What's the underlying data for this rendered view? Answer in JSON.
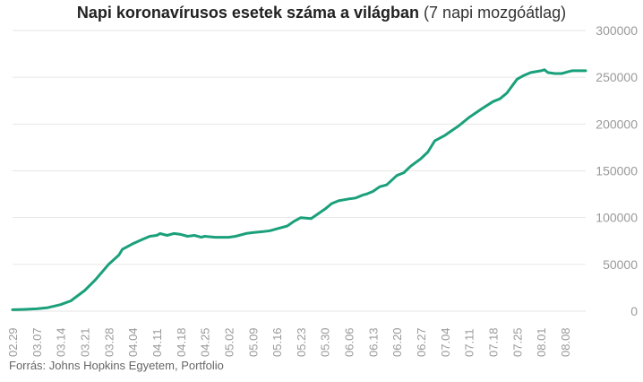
{
  "title_bold": "Napi koronavírusos esetek száma a világban",
  "title_normal": "(7 napi mozgóátlag)",
  "source": "Forrás: Johns Hopkins Egyetem, Portfolio",
  "colors": {
    "line": "#1aa07a",
    "grid": "#e6e6e6",
    "axis_text": "#9a9a9a"
  },
  "chart_data": {
    "type": "line",
    "title": "Napi koronavírusos esetek száma a világban (7 napi mozgóátlag)",
    "xlabel": "",
    "ylabel": "",
    "ylim": [
      0,
      300000
    ],
    "yticks": [
      0,
      50000,
      100000,
      150000,
      200000,
      250000,
      300000
    ],
    "ytick_labels": [
      "0",
      "50000",
      "100000",
      "150000",
      "200000",
      "250000",
      "300000"
    ],
    "x_start": "02.29",
    "x_ticks": [
      "02.29",
      "03.07",
      "03.14",
      "03.21",
      "03.28",
      "04.04",
      "04.11",
      "04.18",
      "04.25",
      "05.02",
      "05.09",
      "05.16",
      "05.23",
      "05.30",
      "06.06",
      "06.13",
      "06.20",
      "06.27",
      "07.04",
      "07.11",
      "07.18",
      "07.25",
      "08.01",
      "08.08"
    ],
    "x_end": "08.14",
    "grid": true,
    "series": [
      {
        "name": "",
        "points": [
          [
            "02.29",
            1500
          ],
          [
            "03.03",
            1800
          ],
          [
            "03.07",
            2500
          ],
          [
            "03.10",
            3500
          ],
          [
            "03.14",
            7000
          ],
          [
            "03.17",
            11000
          ],
          [
            "03.21",
            22000
          ],
          [
            "03.24",
            33000
          ],
          [
            "03.28",
            50000
          ],
          [
            "03.31",
            60000
          ],
          [
            "04.01",
            66000
          ],
          [
            "04.04",
            72000
          ],
          [
            "04.07",
            77000
          ],
          [
            "04.09",
            80000
          ],
          [
            "04.11",
            81000
          ],
          [
            "04.12",
            83000
          ],
          [
            "04.14",
            81000
          ],
          [
            "04.16",
            83000
          ],
          [
            "04.18",
            82000
          ],
          [
            "04.20",
            80000
          ],
          [
            "04.22",
            81000
          ],
          [
            "04.24",
            79000
          ],
          [
            "04.25",
            80000
          ],
          [
            "04.28",
            79000
          ],
          [
            "05.02",
            79000
          ],
          [
            "05.04",
            80000
          ],
          [
            "05.07",
            83000
          ],
          [
            "05.09",
            84000
          ],
          [
            "05.12",
            85000
          ],
          [
            "05.14",
            86000
          ],
          [
            "05.16",
            88000
          ],
          [
            "05.19",
            91000
          ],
          [
            "05.21",
            96000
          ],
          [
            "05.23",
            100000
          ],
          [
            "05.26",
            99000
          ],
          [
            "05.28",
            104000
          ],
          [
            "05.30",
            109000
          ],
          [
            "06.01",
            115000
          ],
          [
            "06.03",
            118000
          ],
          [
            "06.06",
            120000
          ],
          [
            "06.08",
            121000
          ],
          [
            "06.10",
            124000
          ],
          [
            "06.11",
            125000
          ],
          [
            "06.13",
            128000
          ],
          [
            "06.15",
            133000
          ],
          [
            "06.17",
            135000
          ],
          [
            "06.20",
            145000
          ],
          [
            "06.22",
            148000
          ],
          [
            "06.24",
            155000
          ],
          [
            "06.27",
            163000
          ],
          [
            "06.29",
            170000
          ],
          [
            "07.01",
            182000
          ],
          [
            "07.04",
            188000
          ],
          [
            "07.06",
            193000
          ],
          [
            "07.08",
            198000
          ],
          [
            "07.11",
            207000
          ],
          [
            "07.13",
            212000
          ],
          [
            "07.15",
            217000
          ],
          [
            "07.18",
            224000
          ],
          [
            "07.20",
            227000
          ],
          [
            "07.22",
            233000
          ],
          [
            "07.25",
            248000
          ],
          [
            "07.27",
            252000
          ],
          [
            "07.29",
            255000
          ],
          [
            "08.01",
            257000
          ],
          [
            "08.02",
            258000
          ],
          [
            "08.03",
            255000
          ],
          [
            "08.05",
            254000
          ],
          [
            "08.07",
            254000
          ],
          [
            "08.08",
            255000
          ],
          [
            "08.10",
            257000
          ],
          [
            "08.14",
            257000
          ]
        ]
      }
    ]
  }
}
